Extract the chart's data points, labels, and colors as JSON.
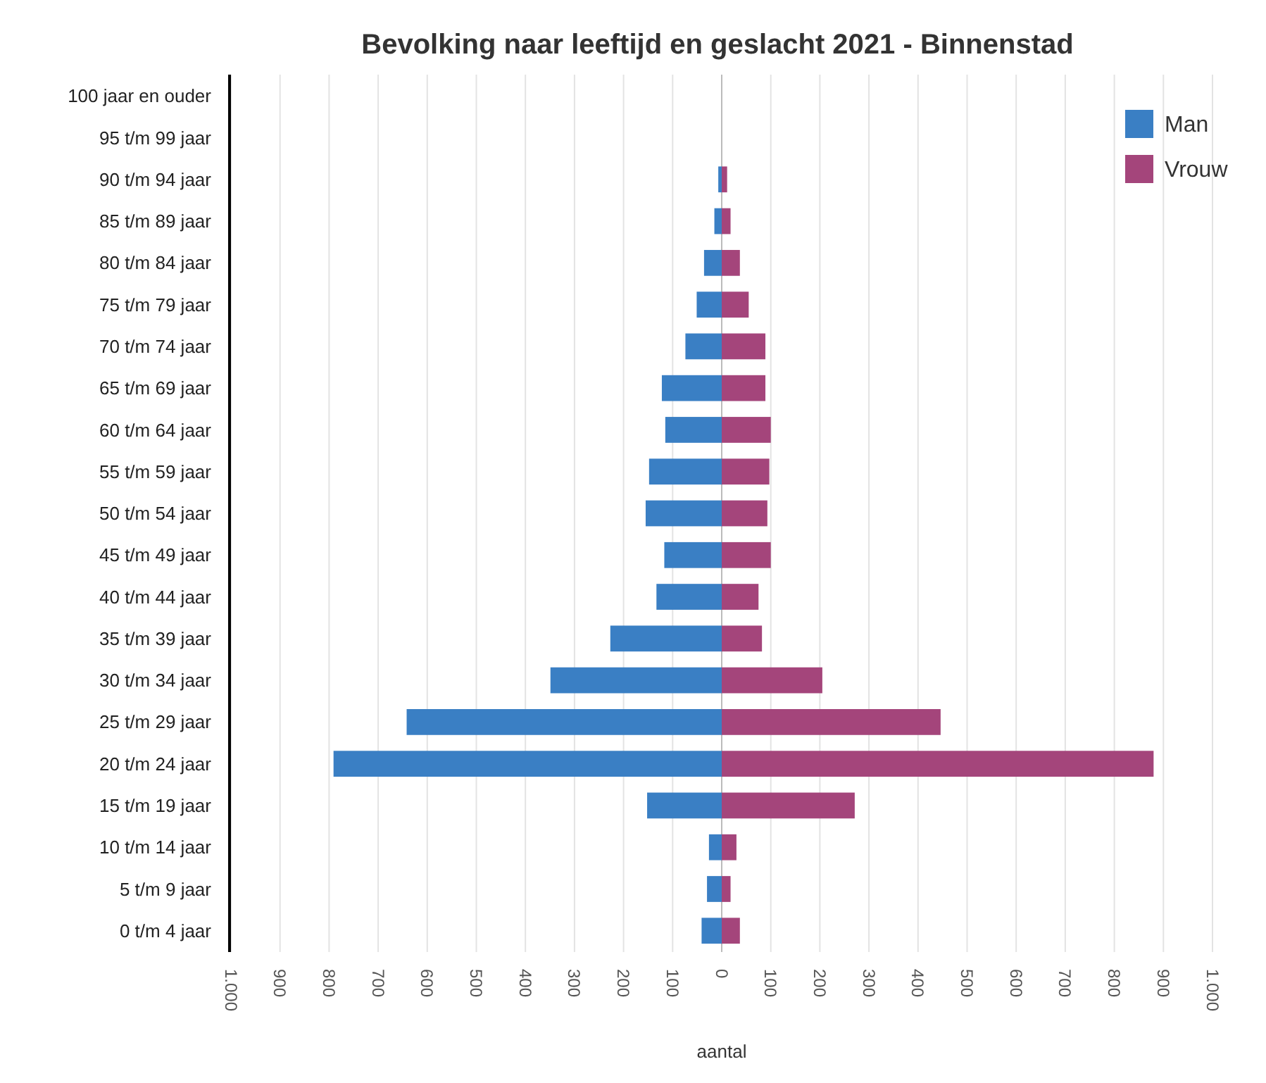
{
  "chart_data": {
    "type": "bar",
    "title": "Bevolking naar leeftijd en geslacht 2021 - Binnenstad",
    "xlabel": "aantal",
    "orientation": "horizontal",
    "stacked": true,
    "grid": "x",
    "legend": "top right",
    "categories": [
      "100 jaar en ouder",
      "95 t/m 99 jaar",
      "90 t/m 94 jaar",
      "85 t/m 89 jaar",
      "80 t/m 84 jaar",
      "75 t/m 79 jaar",
      "70 t/m 74 jaar",
      "65 t/m 69 jaar",
      "60 t/m 64 jaar",
      "55 t/m 59 jaar",
      "50 t/m 54 jaar",
      "45 t/m 49 jaar",
      "40 t/m 44 jaar",
      "35 t/m 39 jaar",
      "30 t/m 34 jaar",
      "25 t/m 29 jaar",
      "20 t/m 24 jaar",
      "15 t/m 19 jaar",
      "10 t/m 14 jaar",
      "5 t/m 9 jaar",
      "0 t/m 4 jaar"
    ],
    "series": [
      {
        "name": "Man",
        "color": "#3a7fc4",
        "values": [
          0,
          0,
          -7,
          -15,
          -36,
          -51,
          -74,
          -122,
          -115,
          -148,
          -155,
          -117,
          -133,
          -227,
          -349,
          -642,
          -791,
          -152,
          -26,
          -30,
          -41
        ]
      },
      {
        "name": "Vrouw",
        "color": "#a4457b",
        "values": [
          0,
          0,
          11,
          18,
          37,
          55,
          89,
          89,
          100,
          97,
          93,
          100,
          75,
          82,
          205,
          446,
          880,
          271,
          30,
          18,
          37
        ]
      }
    ],
    "xlim": [
      -1000,
      1000
    ],
    "xticks": [
      {
        "value": -1000,
        "label": "1.000"
      },
      {
        "value": -900,
        "label": "900"
      },
      {
        "value": -800,
        "label": "800"
      },
      {
        "value": -700,
        "label": "700"
      },
      {
        "value": -600,
        "label": "600"
      },
      {
        "value": -500,
        "label": "500"
      },
      {
        "value": -400,
        "label": "400"
      },
      {
        "value": -300,
        "label": "300"
      },
      {
        "value": -200,
        "label": "200"
      },
      {
        "value": -100,
        "label": "100"
      },
      0,
      100,
      200,
      300,
      400,
      500,
      600,
      700,
      800,
      900,
      {
        "value": 1000,
        "label": "1.000"
      }
    ]
  }
}
